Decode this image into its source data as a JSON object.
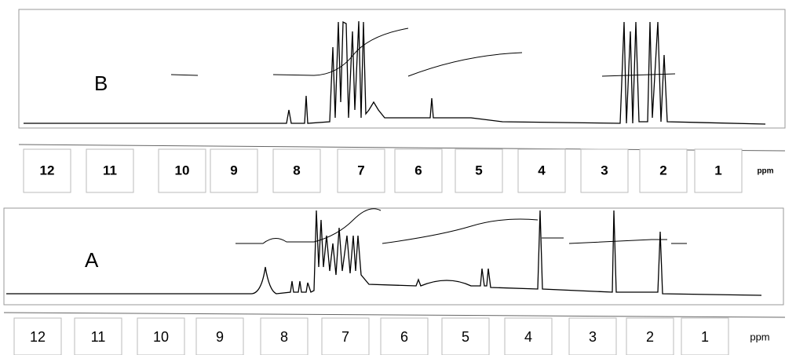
{
  "panels": [
    {
      "label": "B",
      "ticks": [
        "12",
        "11",
        "10",
        "9",
        "8",
        "7",
        "6",
        "5",
        "4",
        "3",
        "2",
        "1"
      ],
      "unit": "ppm"
    },
    {
      "label": "A",
      "ticks": [
        "12",
        "11",
        "10",
        "9",
        "8",
        "7",
        "6",
        "5",
        "4",
        "3",
        "2",
        "1"
      ],
      "unit": "ppm"
    }
  ]
}
